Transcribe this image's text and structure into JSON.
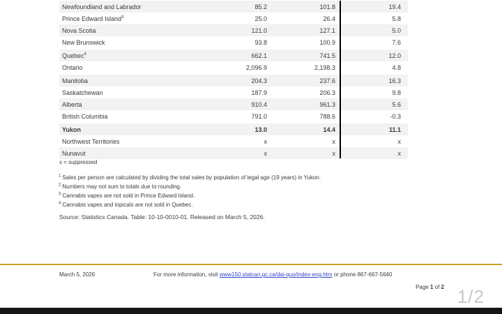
{
  "table": {
    "rows": [
      {
        "name": "Newfoundland and Labrador",
        "sup": "",
        "v": [
          "85.2",
          "101.8",
          "19.4"
        ]
      },
      {
        "name": "Prince Edward Island",
        "sup": "3",
        "v": [
          "25.0",
          "26.4",
          "5.8"
        ]
      },
      {
        "name": "Nova Scotia",
        "sup": "",
        "v": [
          "121.0",
          "127.1",
          "5.0"
        ]
      },
      {
        "name": "New Brunswick",
        "sup": "",
        "v": [
          "93.8",
          "100.9",
          "7.6"
        ]
      },
      {
        "name": "Quebec",
        "sup": "4",
        "v": [
          "662.1",
          "741.5",
          "12.0"
        ]
      },
      {
        "name": "Ontario",
        "sup": "",
        "v": [
          "2,096.9",
          "2,198.3",
          "4.8"
        ]
      },
      {
        "name": "Manitoba",
        "sup": "",
        "v": [
          "204.3",
          "237.6",
          "16.3"
        ]
      },
      {
        "name": "Saskatchewan",
        "sup": "",
        "v": [
          "187.9",
          "206.3",
          "9.8"
        ]
      },
      {
        "name": "Alberta",
        "sup": "",
        "v": [
          "910.4",
          "961.3",
          "5.6"
        ]
      },
      {
        "name": "British Columbia",
        "sup": "",
        "v": [
          "791.0",
          "788.6",
          "-0.3"
        ]
      },
      {
        "name": "Yukon",
        "sup": "",
        "v": [
          "13.0",
          "14.4",
          "11.1"
        ]
      },
      {
        "name": "Northwest Territories",
        "sup": "",
        "v": [
          "x",
          "x",
          "x"
        ]
      },
      {
        "name": "Nunavut",
        "sup": "",
        "v": [
          "x",
          "x",
          "x"
        ]
      }
    ]
  },
  "notes": {
    "suppressed": "x = suppressed",
    "footnotes": [
      {
        "sup": "1",
        "text": "Sales per person are calculated by dividing the total sales by population of legal age (19 years) in Yukon."
      },
      {
        "sup": "2",
        "text": "Numbers may not sum to totals due to rounding."
      },
      {
        "sup": "3",
        "text": "Cannabis vapes are not sold in Prince Edward Island."
      },
      {
        "sup": "4",
        "text": "Cannabis vapes and topicals are not sold in Quebec."
      }
    ],
    "source": "Source: Statistics Canada. Table: 10-10-0010-01. Released on March 5, 2026."
  },
  "footer": {
    "date": "March 5, 2026",
    "info_prefix": "For more information, visit ",
    "link": "www150.statcan.gc.ca/dai-quo/index-eng.htm",
    "info_suffix": " or phone 867-667-5640",
    "page": {
      "word": "Page ",
      "num": "1",
      "of": " of ",
      "total": "2"
    }
  },
  "viewer": {
    "page_indicator": "1/2"
  },
  "colors": {
    "row_shade": "#f2f2f2",
    "accent_gold": "#C9A227",
    "link_blue": "#3344cc",
    "divider_black": "#000000"
  }
}
